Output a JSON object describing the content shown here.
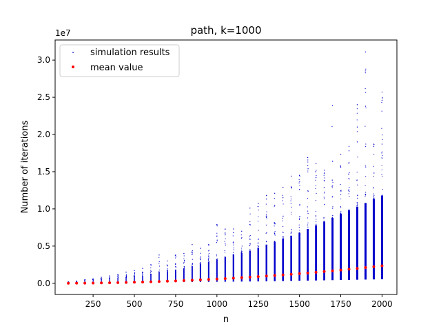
{
  "chart_data": {
    "type": "scatter",
    "title": "path, k=1000",
    "xlabel": "n",
    "ylabel": "Number of iterations",
    "offset_label": "1e7",
    "xlim": [
      20,
      2090
    ],
    "ylim": [
      -1500000,
      32700000
    ],
    "xticks": [
      250,
      500,
      750,
      1000,
      1250,
      1500,
      1750,
      2000
    ],
    "xtick_labels": [
      "250",
      "500",
      "750",
      "1000",
      "1250",
      "1500",
      "1750",
      "2000"
    ],
    "yticks": [
      0,
      5000000,
      10000000,
      15000000,
      20000000,
      25000000,
      30000000
    ],
    "ytick_labels": [
      "0.0",
      "0.5",
      "1.0",
      "1.5",
      "2.0",
      "2.5",
      "3.0"
    ],
    "legend_position": "upper-left",
    "grid": false,
    "series": [
      {
        "name": "simulation results",
        "marker": "dot",
        "color": "#0000cc",
        "x": [
          100,
          150,
          200,
          250,
          300,
          350,
          400,
          450,
          500,
          550,
          600,
          650,
          700,
          750,
          800,
          850,
          900,
          950,
          1000,
          1050,
          1100,
          1150,
          1200,
          1250,
          1300,
          1350,
          1400,
          1450,
          1500,
          1550,
          1600,
          1650,
          1700,
          1750,
          1800,
          1850,
          1900,
          1950,
          2000
        ],
        "min": [
          20000,
          30000,
          40000,
          50000,
          60000,
          70000,
          80000,
          90000,
          100000,
          110000,
          120000,
          130000,
          140000,
          150000,
          160000,
          170000,
          180000,
          190000,
          200000,
          210000,
          220000,
          230000,
          240000,
          250000,
          260000,
          280000,
          300000,
          320000,
          340000,
          360000,
          380000,
          400000,
          420000,
          440000,
          460000,
          480000,
          500000,
          520000,
          540000
        ],
        "dense_max": [
          150000,
          200000,
          300000,
          400000,
          500000,
          600000,
          700000,
          800000,
          900000,
          1000000,
          1200000,
          1400000,
          1600000,
          1800000,
          2000000,
          2300000,
          2600000,
          2900000,
          3200000,
          3500000,
          3800000,
          4100000,
          4400000,
          4800000,
          5200000,
          5600000,
          6000000,
          6400000,
          6800000,
          7300000,
          7800000,
          8300000,
          8800000,
          9300000,
          9800000,
          10300000,
          10800000,
          11300000,
          11800000
        ],
        "max": [
          200000,
          300000,
          500000,
          600000,
          800000,
          1000000,
          1200000,
          1500000,
          1700000,
          2000000,
          2500000,
          3800000,
          3000000,
          3800000,
          4000000,
          5200000,
          4700000,
          5200000,
          7900000,
          7300000,
          7300000,
          7000000,
          10100000,
          10700000,
          11800000,
          12100000,
          12900000,
          14400000,
          14500000,
          16900000,
          16100000,
          15200000,
          23900000,
          17300000,
          18400000,
          24000000,
          31100000,
          18700000,
          25700000
        ],
        "outliers": [
          [
            1050,
            6500000
          ],
          [
            1100,
            6800000
          ],
          [
            1200,
            7900000
          ],
          [
            1300,
            9000000
          ],
          [
            1350,
            10500000
          ],
          [
            1400,
            11500000
          ],
          [
            1450,
            12800000
          ],
          [
            1500,
            12600000
          ],
          [
            1550,
            15800000
          ],
          [
            1600,
            14200000
          ],
          [
            1650,
            14800000
          ],
          [
            1700,
            16400000
          ],
          [
            1750,
            15600000
          ],
          [
            1800,
            17800000
          ],
          [
            1850,
            21000000
          ],
          [
            1850,
            19000000
          ],
          [
            1900,
            23800000
          ],
          [
            1950,
            18400000
          ],
          [
            2000,
            24600000
          ],
          [
            2000,
            18700000
          ]
        ]
      },
      {
        "name": "mean value",
        "marker": "dot",
        "color": "#ff0000",
        "x": [
          100,
          150,
          200,
          250,
          300,
          350,
          400,
          450,
          500,
          550,
          600,
          650,
          700,
          750,
          800,
          850,
          900,
          950,
          1000,
          1050,
          1100,
          1150,
          1200,
          1250,
          1300,
          1350,
          1400,
          1450,
          1500,
          1550,
          1600,
          1650,
          1700,
          1750,
          1800,
          1850,
          1900,
          1950,
          2000
        ],
        "values": [
          5000,
          12000,
          22000,
          35000,
          51000,
          69000,
          90000,
          115000,
          142000,
          172000,
          205000,
          240000,
          280000,
          322000,
          366000,
          414000,
          464000,
          517000,
          573000,
          632000,
          695000,
          760000,
          828000,
          900000,
          974000,
          1050000,
          1130000,
          1210000,
          1300000,
          1390000,
          1480000,
          1580000,
          1680000,
          1780000,
          1890000,
          2000000,
          2110000,
          2230000,
          2350000
        ]
      }
    ]
  }
}
